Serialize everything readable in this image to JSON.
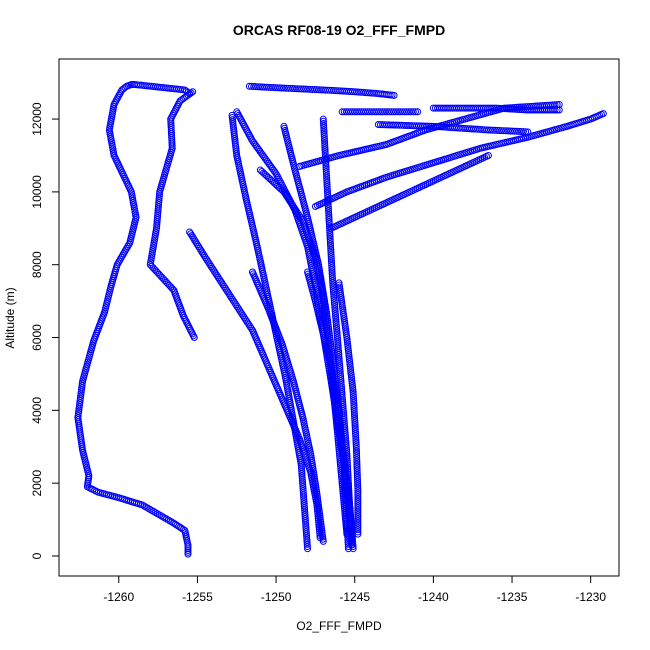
{
  "chart_data": {
    "type": "scatter",
    "title": "ORCAS RF08-19 O2_FFF_FMPD",
    "xlabel": "O2_FFF_FMPD",
    "ylabel": "Altitude (m)",
    "xlim": [
      -1263.8,
      -1228.2
    ],
    "ylim": [
      -550,
      13650
    ],
    "xticks": [
      -1260,
      -1255,
      -1250,
      -1245,
      -1240,
      -1235,
      -1230
    ],
    "yticks": [
      0,
      2000,
      4000,
      6000,
      8000,
      10000,
      12000
    ],
    "marker": "open-circle",
    "color": "#0000ff",
    "grid": false,
    "series": [
      {
        "x": [
          -1255.6,
          -1255.6,
          -1255.8,
          -1256.5,
          -1257.3,
          -1258.5,
          -1260.0,
          -1261.3,
          -1262.0,
          -1261.9,
          -1262.3,
          -1262.6,
          -1262.3,
          -1261.6,
          -1260.9,
          -1260.5,
          -1260.1,
          -1259.3,
          -1258.9,
          -1259.2,
          -1260.3,
          -1260.6,
          -1260.3,
          -1259.8,
          -1259.5,
          -1259.2,
          -1259.0,
          -1255.8,
          -1255.5
        ],
        "y": [
          50,
          300,
          700,
          900,
          1100,
          1400,
          1600,
          1750,
          1900,
          2200,
          2900,
          3800,
          4800,
          5900,
          6700,
          7400,
          8000,
          8600,
          9300,
          10000,
          11000,
          11700,
          12400,
          12800,
          12900,
          12950,
          12950,
          12800,
          12700
        ]
      },
      {
        "x": [
          -1255.3,
          -1256.1,
          -1256.7,
          -1256.6,
          -1257.4,
          -1257.6,
          -1258.0,
          -1256.5,
          -1255.9,
          -1255.2
        ],
        "y": [
          12750,
          12500,
          12000,
          11200,
          10000,
          9000,
          8000,
          7300,
          6600,
          6000
        ]
      },
      {
        "x": [
          -1255.5,
          -1254.5,
          -1253.0,
          -1251.5,
          -1250.5,
          -1249.5,
          -1248.5,
          -1247.8,
          -1247.4,
          -1247.2
        ],
        "y": [
          8900,
          8200,
          7200,
          6200,
          5200,
          4200,
          3200,
          2300,
          1400,
          500
        ]
      },
      {
        "x": [
          -1252.8,
          -1252.5,
          -1251.9,
          -1251.2,
          -1250.6,
          -1250.0,
          -1249.4,
          -1248.9,
          -1248.4,
          -1248.0
        ],
        "y": [
          12100,
          11000,
          9800,
          8500,
          7300,
          6100,
          4900,
          3700,
          2500,
          200
        ]
      },
      {
        "x": [
          -1251.7,
          -1249.5,
          -1247.0,
          -1245.0,
          -1243.5,
          -1242.5
        ],
        "y": [
          12900,
          12850,
          12800,
          12750,
          12700,
          12650
        ]
      },
      {
        "x": [
          -1252.5,
          -1251.5,
          -1250.0,
          -1248.8,
          -1248.0,
          -1247.5,
          -1247.0,
          -1246.5,
          -1246.0,
          -1245.5,
          -1245.2
        ],
        "y": [
          12200,
          11400,
          10500,
          9500,
          8500,
          7400,
          6100,
          4800,
          3400,
          2000,
          300
        ]
      },
      {
        "x": [
          -1249.5,
          -1248.8,
          -1248.0,
          -1247.3,
          -1246.8,
          -1246.4,
          -1246.0,
          -1245.7,
          -1245.4
        ],
        "y": [
          11800,
          10600,
          9300,
          8000,
          6700,
          5400,
          4000,
          2600,
          200
        ]
      },
      {
        "x": [
          -1247.0,
          -1246.8,
          -1246.6,
          -1246.4,
          -1246.1,
          -1245.8,
          -1245.5,
          -1245.2
        ],
        "y": [
          12000,
          10500,
          9000,
          7500,
          6000,
          4400,
          2800,
          400
        ]
      },
      {
        "x": [
          -1245.8,
          -1243.5,
          -1241.0
        ],
        "y": [
          12200,
          12200,
          12200
        ]
      },
      {
        "x": [
          -1248.5,
          -1246.0,
          -1243.0,
          -1240.5,
          -1238.0,
          -1235.5,
          -1232.0
        ],
        "y": [
          10700,
          11000,
          11300,
          11700,
          12000,
          12300,
          12400
        ]
      },
      {
        "x": [
          -1247.5,
          -1245.5,
          -1243.0,
          -1240.0,
          -1237.0,
          -1234.0,
          -1231.5,
          -1230.0,
          -1229.2
        ],
        "y": [
          9600,
          10000,
          10400,
          10800,
          11200,
          11500,
          11800,
          12000,
          12150
        ]
      },
      {
        "x": [
          -1246.5,
          -1244.0,
          -1241.5,
          -1239.0,
          -1236.5
        ],
        "y": [
          9000,
          9500,
          10000,
          10500,
          11000
        ]
      },
      {
        "x": [
          -1240.0,
          -1238.0,
          -1236.0,
          -1234.0,
          -1232.0
        ],
        "y": [
          12300,
          12300,
          12300,
          12250,
          12250
        ]
      },
      {
        "x": [
          -1243.5,
          -1240.0,
          -1236.5,
          -1234.0
        ],
        "y": [
          11850,
          11800,
          11700,
          11650
        ]
      },
      {
        "x": [
          -1248.0,
          -1247.5,
          -1247.0,
          -1246.5,
          -1246.2,
          -1245.9,
          -1245.6,
          -1245.3,
          -1245.1
        ],
        "y": [
          7800,
          7000,
          6100,
          5200,
          4300,
          3400,
          2400,
          1300,
          200
        ]
      },
      {
        "x": [
          -1251.5,
          -1250.5,
          -1249.6,
          -1248.9,
          -1248.3,
          -1247.8,
          -1247.4,
          -1247.0
        ],
        "y": [
          7800,
          6800,
          5800,
          4800,
          3800,
          2800,
          1700,
          400
        ]
      },
      {
        "x": [
          -1246.0,
          -1245.5,
          -1245.1,
          -1244.9,
          -1244.8,
          -1244.8
        ],
        "y": [
          7500,
          6000,
          4500,
          3000,
          1800,
          600
        ]
      },
      {
        "x": [
          -1251.0,
          -1249.5,
          -1248.3,
          -1247.5,
          -1247.0,
          -1246.7,
          -1246.4,
          -1246.1,
          -1245.8,
          -1245.5
        ],
        "y": [
          10600,
          10000,
          9200,
          8200,
          7100,
          5900,
          4700,
          3400,
          2000,
          600
        ]
      }
    ]
  }
}
